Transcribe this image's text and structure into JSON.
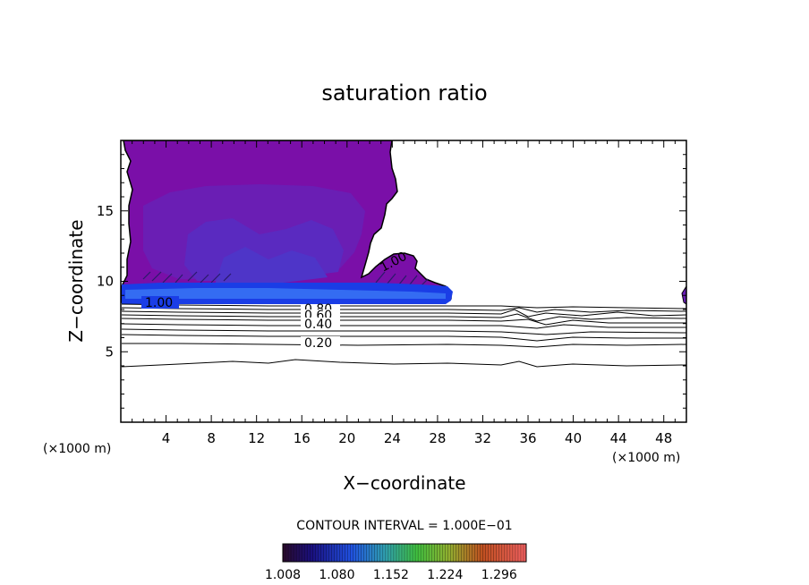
{
  "chart_data": {
    "type": "contour",
    "title": "saturation ratio",
    "xlabel": "X−coordinate",
    "ylabel": "Z−coordinate",
    "x_unit_label": "(×1000 m)",
    "z_unit_label": "(×1000 m)",
    "xlim": [
      0,
      50
    ],
    "ylim": [
      0,
      20
    ],
    "x_ticks": [
      4,
      8,
      12,
      16,
      20,
      24,
      28,
      32,
      36,
      40,
      44,
      48
    ],
    "y_ticks": [
      5,
      10,
      15
    ],
    "contour_interval_text": "CONTOUR INTERVAL = 1.000E−01",
    "contour_levels": [
      0.1,
      0.2,
      0.3,
      0.4,
      0.5,
      0.6,
      0.7,
      0.8,
      0.9,
      1.0
    ],
    "contour_labels": [
      {
        "text": "1.00",
        "x": 3.7,
        "z": 8.5
      },
      {
        "text": "1.00",
        "x": 24.5,
        "z": 11.2
      },
      {
        "text": "0.80",
        "x": 17.9,
        "z": 8.1
      },
      {
        "text": "0.60",
        "x": 17.9,
        "z": 7.8
      },
      {
        "text": "0.40",
        "x": 17.9,
        "z": 7.0
      },
      {
        "text": "0.20",
        "x": 17.9,
        "z": 5.5
      }
    ],
    "contour_heights": [
      {
        "level": 1.0,
        "z": 8.6
      },
      {
        "level": 0.9,
        "z": 8.3
      },
      {
        "level": 0.8,
        "z": 8.0
      },
      {
        "level": 0.7,
        "z": 7.7
      },
      {
        "level": 0.6,
        "z": 7.4
      },
      {
        "level": 0.5,
        "z": 7.0
      },
      {
        "level": 0.4,
        "z": 6.7
      },
      {
        "level": 0.3,
        "z": 6.2
      },
      {
        "level": 0.2,
        "z": 5.6
      },
      {
        "level": 0.1,
        "z": 4.2
      }
    ],
    "colorbar": {
      "ticks": [
        "1.008",
        "1.080",
        "1.152",
        "1.224",
        "1.296"
      ],
      "range": [
        1.008,
        1.332
      ]
    },
    "colors": {
      "supersat_outer": "#7a0fa8",
      "supersat_mid": "#6a1eb4",
      "supersat_inner": "#5a2ac0",
      "supersat_core": "#4e35c8",
      "band": "#1a3de6",
      "band_light": "#3d7cf5"
    }
  }
}
